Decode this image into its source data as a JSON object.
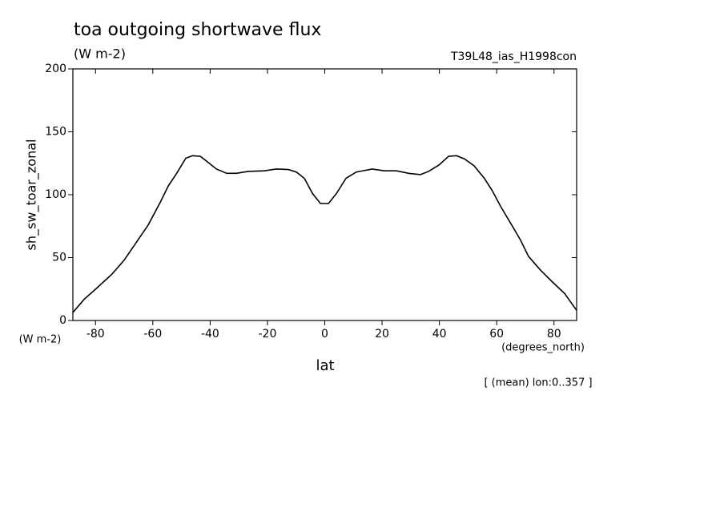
{
  "chart_data": {
    "type": "line",
    "title": "toa outgoing shortwave flux",
    "subtitle": "(W m-2)",
    "dataset": "T39L48_ias_H1998con",
    "y_label": "sh_sw_toar_zonal",
    "y_units": "(W m-2)",
    "x_label": "lat",
    "x_units": "(degrees_north)",
    "note": "[ (mean) lon:0..357 ]",
    "x": [
      -87.9,
      -83.9,
      -79.7,
      -74.2,
      -70,
      -65.8,
      -61.6,
      -57.4,
      -54.6,
      -51.8,
      -48.5,
      -46.2,
      -43.4,
      -40.6,
      -37.8,
      -34.2,
      -30.9,
      -26.7,
      -21.1,
      -16.9,
      -12.7,
      -9.9,
      -7.1,
      -4.3,
      -1.5,
      1.3,
      4.1,
      7.4,
      11,
      16.6,
      20.8,
      25,
      29.2,
      33.4,
      36.2,
      39.8,
      43.2,
      46,
      48.7,
      52.1,
      55.7,
      58.5,
      61.3,
      64.7,
      68.3,
      71.1,
      75.3,
      79.5,
      83.7,
      87.9
    ],
    "series": [
      {
        "name": "sh_sw_toar_zonal",
        "color": "#000000",
        "values": [
          6.4,
          17,
          25.5,
          37,
          48,
          62,
          76,
          94,
          107,
          116.5,
          129,
          131,
          130.5,
          125.5,
          120.4,
          117,
          117,
          118.5,
          119,
          120.4,
          120,
          118,
          113,
          101,
          93,
          93,
          101,
          113,
          118,
          120.4,
          119,
          119,
          117,
          116,
          118.5,
          123.5,
          130.5,
          131,
          128.5,
          123,
          113,
          103,
          91,
          78,
          64,
          51,
          40,
          30.5,
          21.5,
          8
        ]
      }
    ],
    "xlim": [
      -87.9,
      87.9
    ],
    "ylim": [
      0,
      200
    ],
    "xticks": [
      -80,
      -60,
      -40,
      -20,
      0,
      20,
      40,
      60,
      80
    ],
    "yticks": [
      0,
      50,
      100,
      150,
      200
    ]
  }
}
